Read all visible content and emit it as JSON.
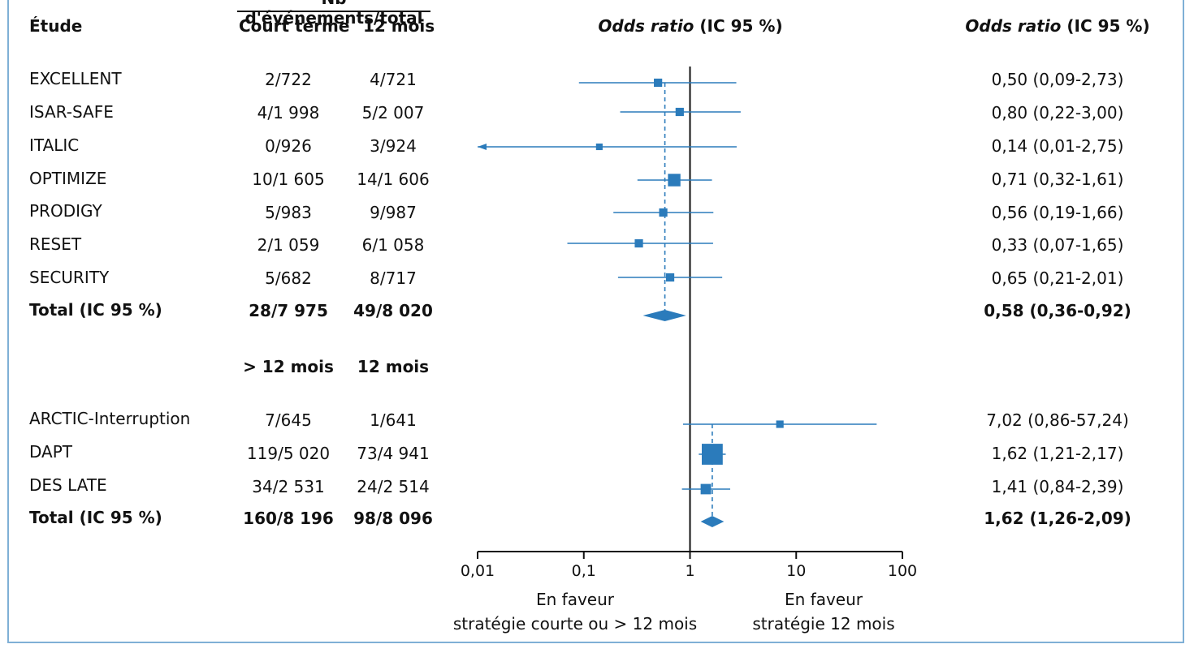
{
  "header": {
    "events_group": "Nb d'événements/total",
    "study": "Étude",
    "col_a": "Court terme",
    "col_b": "12 mois",
    "or_italic": "Odds ratio",
    "or_rest": " (IC 95 %)",
    "or_right_italic": "Odds ratio",
    "or_right_rest": " (IC 95 %)"
  },
  "group1": {
    "rows": [
      {
        "study": "EXCELLENT",
        "a": "2/722",
        "b": "4/721",
        "ci": "0,50 (0,09-2,73)"
      },
      {
        "study": "ISAR-SAFE",
        "a": "4/1 998",
        "b": "5/2 007",
        "ci": "0,80 (0,22-3,00)"
      },
      {
        "study": "ITALIC",
        "a": "0/926",
        "b": "3/924",
        "ci": "0,14 (0,01-2,75)"
      },
      {
        "study": "OPTIMIZE",
        "a": "10/1 605",
        "b": "14/1 606",
        "ci": "0,71 (0,32-1,61)"
      },
      {
        "study": "PRODIGY",
        "a": "5/983",
        "b": "9/987",
        "ci": "0,56 (0,19-1,66)"
      },
      {
        "study": "RESET",
        "a": "2/1 059",
        "b": "6/1 058",
        "ci": "0,33 (0,07-1,65)"
      },
      {
        "study": "SECURITY",
        "a": "5/682",
        "b": "8/717",
        "ci": "0,65 (0,21-2,01)"
      }
    ],
    "total": {
      "study": "Total (IC 95 %)",
      "a": "28/7 975",
      "b": "49/8 020",
      "ci": "0,58 (0,36-0,92)"
    }
  },
  "group2": {
    "col_a": "> 12 mois",
    "col_b": "12 mois",
    "rows": [
      {
        "study": "ARCTIC-Interruption",
        "a": "7/645",
        "b": "1/641",
        "ci": "7,02 (0,86-57,24)"
      },
      {
        "study": "DAPT",
        "a": "119/5 020",
        "b": "73/4 941",
        "ci": "1,62 (1,21-2,17)"
      },
      {
        "study": "DES LATE",
        "a": "34/2 531",
        "b": "24/2 514",
        "ci": "1,41 (0,84-2,39)"
      }
    ],
    "total": {
      "study": "Total (IC 95 %)",
      "a": "160/8 196",
      "b": "98/8 096",
      "ci": "1,62 (1,26-2,09)"
    }
  },
  "axis": {
    "ticks": [
      "0,01",
      "0,1",
      "1",
      "10",
      "100"
    ],
    "left_label_1": "En faveur",
    "left_label_2": "stratégie courte ou > 12 mois",
    "right_label_1": "En faveur",
    "right_label_2": "stratégie  12 mois"
  },
  "colors": {
    "accent": "#2b7bbb",
    "frame": "#7fb0d6"
  },
  "chart_data": {
    "type": "forest",
    "scale": "log",
    "xlim": [
      0.01,
      100
    ],
    "xticks": [
      0.01,
      0.1,
      1,
      10,
      100
    ],
    "reference": 1,
    "groups": [
      {
        "studies": [
          {
            "name": "EXCELLENT",
            "or": 0.5,
            "lo": 0.09,
            "hi": 2.73,
            "weight": 1
          },
          {
            "name": "ISAR-SAFE",
            "or": 0.8,
            "lo": 0.22,
            "hi": 3.0,
            "weight": 1
          },
          {
            "name": "ITALIC",
            "or": 0.14,
            "lo": 0.01,
            "hi": 2.75,
            "weight": 0.6,
            "arrow_left": true
          },
          {
            "name": "OPTIMIZE",
            "or": 0.71,
            "lo": 0.32,
            "hi": 1.61,
            "weight": 2
          },
          {
            "name": "PRODIGY",
            "or": 0.56,
            "lo": 0.19,
            "hi": 1.66,
            "weight": 1
          },
          {
            "name": "RESET",
            "or": 0.33,
            "lo": 0.07,
            "hi": 1.65,
            "weight": 1
          },
          {
            "name": "SECURITY",
            "or": 0.65,
            "lo": 0.21,
            "hi": 2.01,
            "weight": 1
          }
        ],
        "total": {
          "or": 0.58,
          "lo": 0.36,
          "hi": 0.92
        }
      },
      {
        "studies": [
          {
            "name": "ARCTIC-Interruption",
            "or": 7.02,
            "lo": 0.86,
            "hi": 57.24,
            "weight": 0.8
          },
          {
            "name": "DAPT",
            "or": 1.62,
            "lo": 1.21,
            "hi": 2.17,
            "weight": 4
          },
          {
            "name": "DES LATE",
            "or": 1.41,
            "lo": 0.84,
            "hi": 2.39,
            "weight": 1.5
          }
        ],
        "total": {
          "or": 1.62,
          "lo": 1.26,
          "hi": 2.09
        }
      }
    ]
  }
}
